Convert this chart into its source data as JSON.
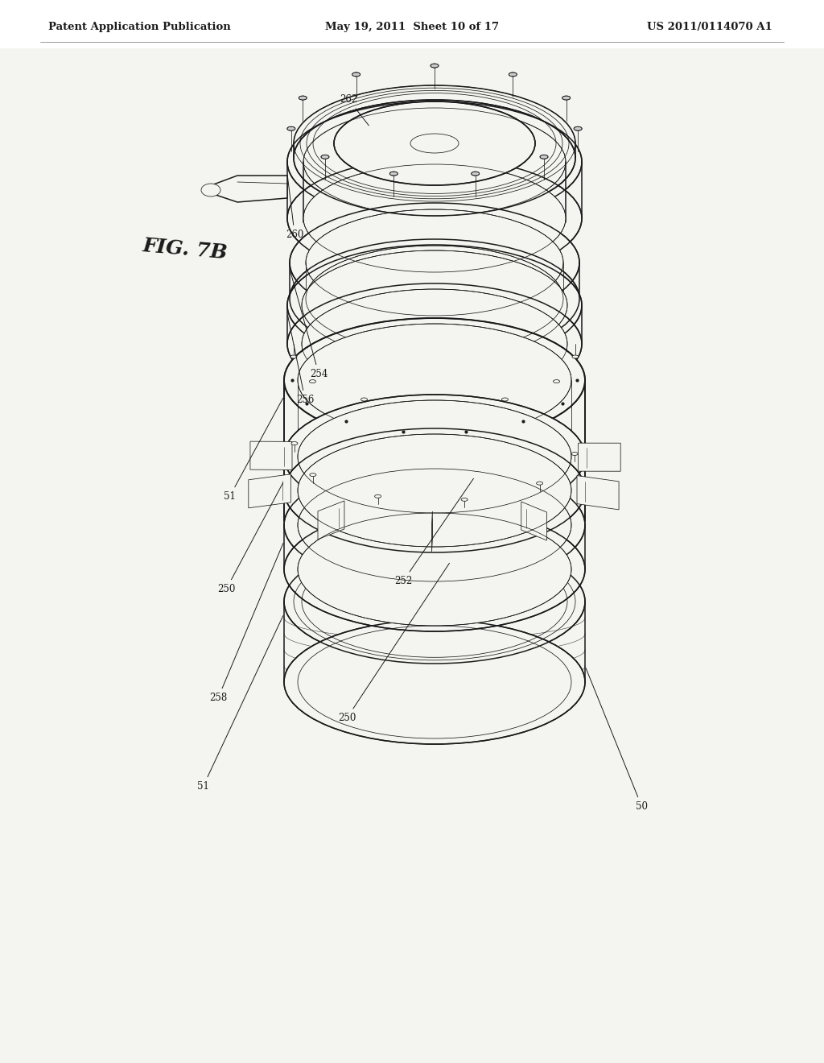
{
  "header_left": "Patent Application Publication",
  "header_mid": "May 19, 2011  Sheet 10 of 17",
  "header_right": "US 2011/0114070 A1",
  "fig_label": "FIG. 7B",
  "bg_color": "#f4f4f0",
  "line_color": "#1a1a1a",
  "lw_main": 1.1,
  "lw_thin": 0.55,
  "lw_thick": 1.4
}
